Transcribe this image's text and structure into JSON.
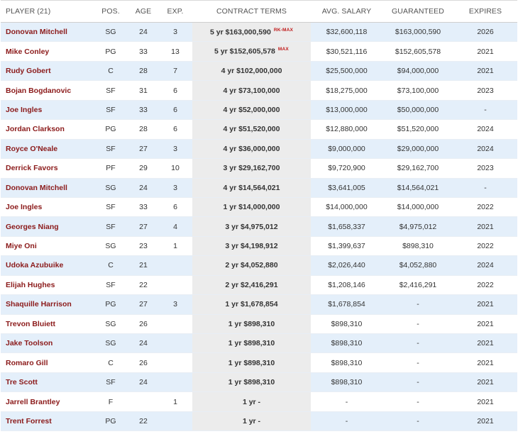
{
  "table": {
    "headers": {
      "player": "PLAYER (21)",
      "pos": "POS.",
      "age": "AGE",
      "exp": "EXP.",
      "terms": "CONTRACT TERMS",
      "avg": "AVG. SALARY",
      "guaranteed": "GUARANTEED",
      "expires": "EXPIRES"
    },
    "rows": [
      {
        "player": "Donovan Mitchell",
        "pos": "SG",
        "age": "24",
        "exp": "3",
        "terms": "5 yr $163,000,590",
        "tag": "RK-MAX",
        "avg": "$32,600,118",
        "guaranteed": "$163,000,590",
        "expires": "2026"
      },
      {
        "player": "Mike Conley",
        "pos": "PG",
        "age": "33",
        "exp": "13",
        "terms": "5 yr $152,605,578",
        "tag": "MAX",
        "avg": "$30,521,116",
        "guaranteed": "$152,605,578",
        "expires": "2021"
      },
      {
        "player": "Rudy Gobert",
        "pos": "C",
        "age": "28",
        "exp": "7",
        "terms": "4 yr $102,000,000",
        "tag": "",
        "avg": "$25,500,000",
        "guaranteed": "$94,000,000",
        "expires": "2021"
      },
      {
        "player": "Bojan Bogdanovic",
        "pos": "SF",
        "age": "31",
        "exp": "6",
        "terms": "4 yr $73,100,000",
        "tag": "",
        "avg": "$18,275,000",
        "guaranteed": "$73,100,000",
        "expires": "2023"
      },
      {
        "player": "Joe Ingles",
        "pos": "SF",
        "age": "33",
        "exp": "6",
        "terms": "4 yr $52,000,000",
        "tag": "",
        "avg": "$13,000,000",
        "guaranteed": "$50,000,000",
        "expires": "-"
      },
      {
        "player": "Jordan Clarkson",
        "pos": "PG",
        "age": "28",
        "exp": "6",
        "terms": "4 yr $51,520,000",
        "tag": "",
        "avg": "$12,880,000",
        "guaranteed": "$51,520,000",
        "expires": "2024"
      },
      {
        "player": "Royce O'Neale",
        "pos": "SF",
        "age": "27",
        "exp": "3",
        "terms": "4 yr $36,000,000",
        "tag": "",
        "avg": "$9,000,000",
        "guaranteed": "$29,000,000",
        "expires": "2024"
      },
      {
        "player": "Derrick Favors",
        "pos": "PF",
        "age": "29",
        "exp": "10",
        "terms": "3 yr $29,162,700",
        "tag": "",
        "avg": "$9,720,900",
        "guaranteed": "$29,162,700",
        "expires": "2023"
      },
      {
        "player": "Donovan Mitchell",
        "pos": "SG",
        "age": "24",
        "exp": "3",
        "terms": "4 yr $14,564,021",
        "tag": "",
        "avg": "$3,641,005",
        "guaranteed": "$14,564,021",
        "expires": "-"
      },
      {
        "player": "Joe Ingles",
        "pos": "SF",
        "age": "33",
        "exp": "6",
        "terms": "1 yr $14,000,000",
        "tag": "",
        "avg": "$14,000,000",
        "guaranteed": "$14,000,000",
        "expires": "2022"
      },
      {
        "player": "Georges Niang",
        "pos": "SF",
        "age": "27",
        "exp": "4",
        "terms": "3 yr $4,975,012",
        "tag": "",
        "avg": "$1,658,337",
        "guaranteed": "$4,975,012",
        "expires": "2021"
      },
      {
        "player": "Miye Oni",
        "pos": "SG",
        "age": "23",
        "exp": "1",
        "terms": "3 yr $4,198,912",
        "tag": "",
        "avg": "$1,399,637",
        "guaranteed": "$898,310",
        "expires": "2022"
      },
      {
        "player": "Udoka Azubuike",
        "pos": "C",
        "age": "21",
        "exp": "",
        "terms": "2 yr $4,052,880",
        "tag": "",
        "avg": "$2,026,440",
        "guaranteed": "$4,052,880",
        "expires": "2024"
      },
      {
        "player": "Elijah Hughes",
        "pos": "SF",
        "age": "22",
        "exp": "",
        "terms": "2 yr $2,416,291",
        "tag": "",
        "avg": "$1,208,146",
        "guaranteed": "$2,416,291",
        "expires": "2022"
      },
      {
        "player": "Shaquille Harrison",
        "pos": "PG",
        "age": "27",
        "exp": "3",
        "terms": "1 yr $1,678,854",
        "tag": "",
        "avg": "$1,678,854",
        "guaranteed": "-",
        "expires": "2021"
      },
      {
        "player": "Trevon Bluiett",
        "pos": "SG",
        "age": "26",
        "exp": "",
        "terms": "1 yr $898,310",
        "tag": "",
        "avg": "$898,310",
        "guaranteed": "-",
        "expires": "2021"
      },
      {
        "player": "Jake Toolson",
        "pos": "SG",
        "age": "24",
        "exp": "",
        "terms": "1 yr $898,310",
        "tag": "",
        "avg": "$898,310",
        "guaranteed": "-",
        "expires": "2021"
      },
      {
        "player": "Romaro Gill",
        "pos": "C",
        "age": "26",
        "exp": "",
        "terms": "1 yr $898,310",
        "tag": "",
        "avg": "$898,310",
        "guaranteed": "-",
        "expires": "2021"
      },
      {
        "player": "Tre Scott",
        "pos": "SF",
        "age": "24",
        "exp": "",
        "terms": "1 yr $898,310",
        "tag": "",
        "avg": "$898,310",
        "guaranteed": "-",
        "expires": "2021"
      },
      {
        "player": "Jarrell Brantley",
        "pos": "F",
        "age": "",
        "exp": "1",
        "terms": "1 yr -",
        "tag": "",
        "avg": "-",
        "guaranteed": "-",
        "expires": "2021"
      },
      {
        "player": "Trent Forrest",
        "pos": "PG",
        "age": "22",
        "exp": "",
        "terms": "1 yr -",
        "tag": "",
        "avg": "-",
        "guaranteed": "-",
        "expires": "2021"
      }
    ]
  }
}
